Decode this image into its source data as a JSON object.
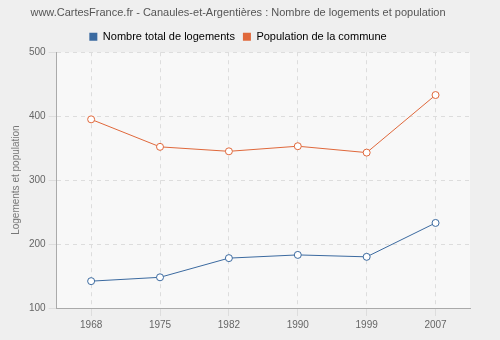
{
  "chart_data": {
    "type": "line",
    "title": "www.CartesFrance.fr - Canaules-et-Argentières : Nombre de logements et population",
    "y_label": "Logements et population",
    "categories": [
      "1968",
      "1975",
      "1982",
      "1990",
      "1999",
      "2007"
    ],
    "series": [
      {
        "name": "Nombre total de logements",
        "color": "#3b6aa0",
        "values": [
          142,
          148,
          178,
          183,
          180,
          233
        ]
      },
      {
        "name": "Population de la commune",
        "color": "#e0683b",
        "values": [
          395,
          352,
          345,
          353,
          343,
          433
        ]
      }
    ],
    "ylim": [
      100,
      500
    ],
    "yticks": [
      100,
      200,
      300,
      400,
      500
    ],
    "grid": true,
    "legend": "top",
    "marker": "circle"
  }
}
